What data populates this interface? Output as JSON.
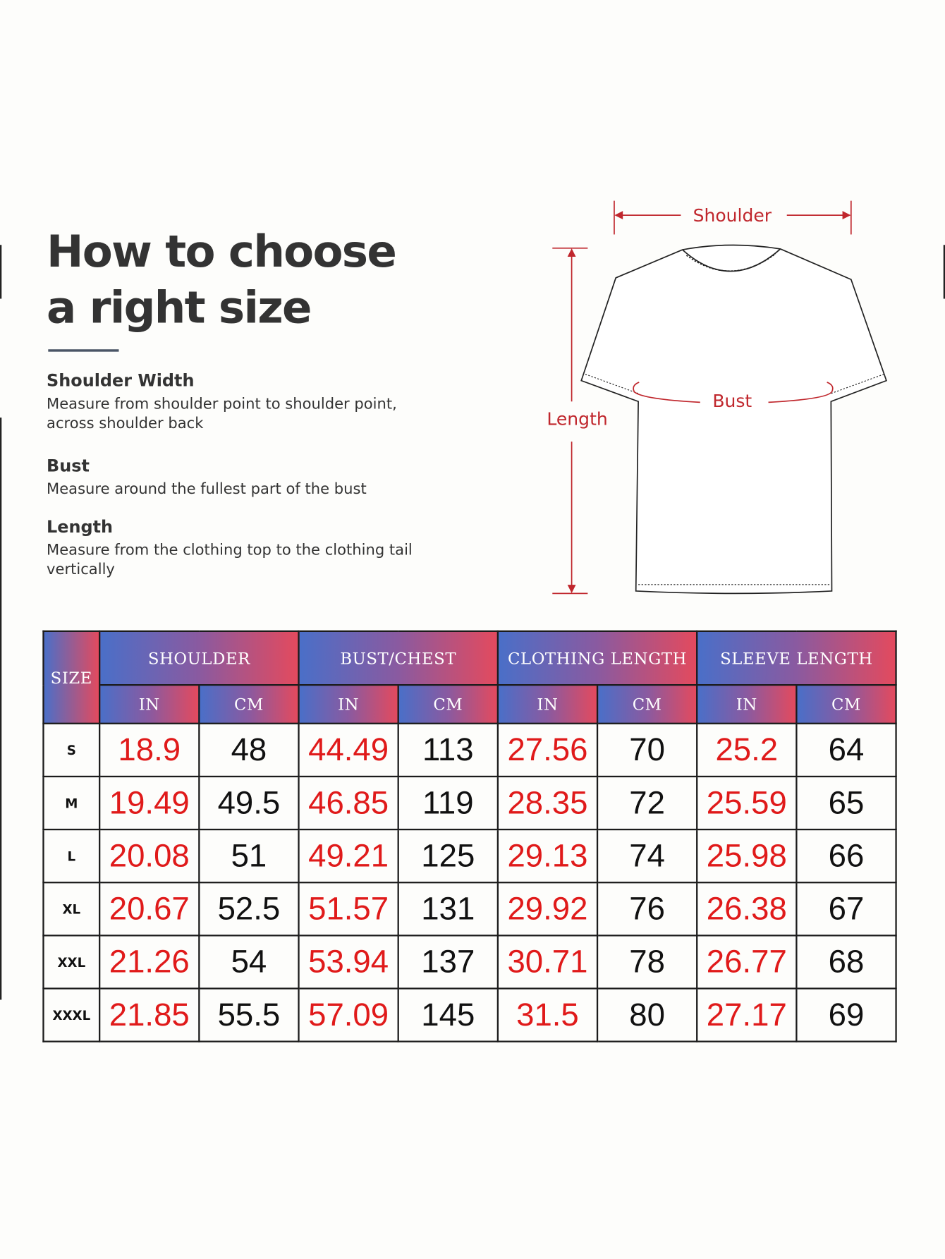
{
  "title": {
    "line1": "How to choose",
    "line2": "a right size"
  },
  "sections": [
    {
      "heading": "Shoulder Width",
      "text": "Measure from shoulder point to shoulder point, across shoulder back"
    },
    {
      "heading": "Bust",
      "text": "Measure around the fullest part of the bust"
    },
    {
      "heading": "Length",
      "text": "Measure from the clothing top to the clothing tail vertically"
    }
  ],
  "diagram": {
    "shoulder_label": "Shoulder",
    "bust_label": "Bust",
    "length_label": "Length",
    "accent_color": "#c0272d"
  },
  "table": {
    "size_header": "SIZE",
    "groups": [
      "SHOULDER",
      "BUST/CHEST",
      "CLOTHING LENGTH",
      "SLEEVE LENGTH"
    ],
    "unit_in": "IN",
    "unit_cm": "CM",
    "rows": [
      {
        "size": "S",
        "values": [
          "18.9",
          "48",
          "44.49",
          "113",
          "27.56",
          "70",
          "25.2",
          "64"
        ]
      },
      {
        "size": "M",
        "values": [
          "19.49",
          "49.5",
          "46.85",
          "119",
          "28.35",
          "72",
          "25.59",
          "65"
        ]
      },
      {
        "size": "L",
        "values": [
          "20.08",
          "51",
          "49.21",
          "125",
          "29.13",
          "74",
          "25.98",
          "66"
        ]
      },
      {
        "size": "XL",
        "values": [
          "20.67",
          "52.5",
          "51.57",
          "131",
          "29.92",
          "76",
          "26.38",
          "67"
        ]
      },
      {
        "size": "XXL",
        "values": [
          "21.26",
          "54",
          "53.94",
          "137",
          "30.71",
          "78",
          "26.77",
          "68"
        ]
      },
      {
        "size": "XXXL",
        "values": [
          "21.85",
          "55.5",
          "57.09",
          "145",
          "31.5",
          "80",
          "27.17",
          "69"
        ]
      }
    ],
    "colors": {
      "inch_value": "#e01a1a",
      "cm_value": "#111111",
      "header_gradient_start": "#4a6fc8",
      "header_gradient_end": "#e34a5e"
    }
  }
}
